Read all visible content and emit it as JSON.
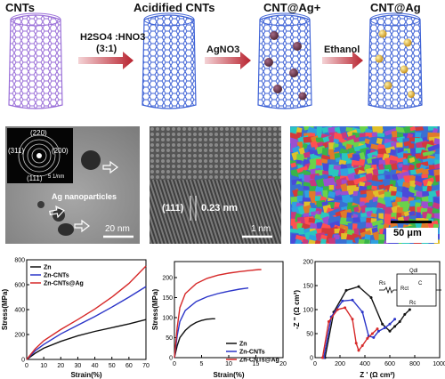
{
  "scheme": {
    "stages": [
      "CNTs",
      "Acidified CNTs",
      "CNT@Ag+",
      "CNT@Ag"
    ],
    "arrows": [
      {
        "label": "H2SO4 :HNO3",
        "sub": "(3:1)"
      },
      {
        "label": "AgNO3",
        "sub": ""
      },
      {
        "label": "Ethanol",
        "sub": ""
      }
    ],
    "colors": {
      "tube1": "#9a6fd8",
      "tube2": "#3f63d6",
      "ion": "#6b3a4e",
      "ag": "#e7b72b",
      "arrow": "#b8232f"
    }
  },
  "micrographs": {
    "tem": {
      "rings": [
        "(220)",
        "(311)",
        "(200)",
        "(111)"
      ],
      "scale_inset": "5 1/nm",
      "annotation": "Ag nanoparticles",
      "scale_bar": "20 nm"
    },
    "hrtem": {
      "plane": "(111)",
      "spacing": "0.23 nm",
      "scale_bar": "1 nm"
    },
    "ebsd": {
      "scale_bar": "50 μm"
    }
  },
  "chart_data": [
    {
      "type": "line",
      "xlabel": "Strain(%)",
      "ylabel": "Stress(MPa)",
      "xlim": [
        0,
        70
      ],
      "ylim": [
        0,
        800
      ],
      "xticks": [
        0,
        10,
        20,
        30,
        40,
        50,
        60,
        70
      ],
      "yticks": [
        0,
        200,
        400,
        600,
        800
      ],
      "legend": "top-left",
      "series": [
        {
          "name": "Zn",
          "color": "#111111",
          "x": [
            0,
            5,
            10,
            20,
            30,
            40,
            50,
            60,
            70
          ],
          "y": [
            0,
            50,
            90,
            145,
            190,
            225,
            255,
            285,
            320
          ]
        },
        {
          "name": "Zn-CNTs",
          "color": "#2b35c8",
          "x": [
            0,
            5,
            10,
            20,
            30,
            40,
            50,
            60,
            70
          ],
          "y": [
            0,
            70,
            120,
            205,
            275,
            345,
            420,
            500,
            585
          ]
        },
        {
          "name": "Zn-CNTs@Ag",
          "color": "#d62828",
          "x": [
            0,
            5,
            10,
            20,
            30,
            40,
            50,
            60,
            70
          ],
          "y": [
            0,
            85,
            150,
            240,
            320,
            405,
            500,
            610,
            750
          ]
        }
      ]
    },
    {
      "type": "line",
      "xlabel": "Strain(%)",
      "ylabel": "Stress(MPa)",
      "xlim": [
        0,
        20
      ],
      "ylim": [
        0,
        240
      ],
      "xticks": [
        0,
        5,
        10,
        15,
        20
      ],
      "yticks": [
        0,
        50,
        100,
        150,
        200
      ],
      "legend": "bottom-right",
      "series": [
        {
          "name": "Zn",
          "color": "#111111",
          "x": [
            0,
            0.5,
            1,
            2,
            3,
            4,
            5,
            6,
            7,
            7.5
          ],
          "y": [
            0,
            30,
            50,
            68,
            80,
            88,
            93,
            96,
            97,
            97
          ]
        },
        {
          "name": "Zn-CNTs",
          "color": "#2b35c8",
          "x": [
            0,
            0.5,
            1,
            2,
            4,
            6,
            8,
            10,
            12,
            13,
            13.6
          ],
          "y": [
            0,
            55,
            90,
            118,
            140,
            152,
            160,
            166,
            171,
            173,
            174
          ]
        },
        {
          "name": "Zn-CNTs@Ag",
          "color": "#d62828",
          "x": [
            0,
            0.5,
            1,
            2,
            4,
            6,
            8,
            10,
            12,
            14,
            15.5,
            16
          ],
          "y": [
            0,
            75,
            125,
            160,
            185,
            198,
            206,
            211,
            215,
            218,
            220,
            220
          ]
        }
      ]
    },
    {
      "type": "scatter",
      "xlabel": "Z ' (Ω cm²)",
      "ylabel": "-Z '' (Ω cm²)",
      "xlim": [
        0,
        1000
      ],
      "ylim": [
        0,
        200
      ],
      "xticks": [
        0,
        200,
        400,
        600,
        800,
        1000
      ],
      "yticks": [
        0,
        50,
        100,
        150,
        200
      ],
      "circuit": {
        "labels": [
          "Rs",
          "Qdl",
          "Rct",
          "C",
          "Rc"
        ]
      },
      "series": [
        {
          "name": "Zn",
          "color": "#111111",
          "x": [
            80,
            150,
            250,
            350,
            450,
            540,
            600,
            640,
            680,
            720,
            760
          ],
          "y": [
            0,
            95,
            140,
            148,
            125,
            70,
            55,
            65,
            75,
            90,
            100
          ]
        },
        {
          "name": "Zn-CNTs",
          "color": "#2b35c8",
          "x": [
            70,
            130,
            220,
            300,
            380,
            430,
            470,
            510,
            560,
            600,
            640
          ],
          "y": [
            0,
            85,
            118,
            120,
            95,
            45,
            42,
            55,
            62,
            70,
            80
          ]
        },
        {
          "name": "Zn-CNTs@Ag",
          "color": "#d62828",
          "x": [
            60,
            110,
            180,
            240,
            300,
            330,
            350,
            380,
            420,
            460,
            500
          ],
          "y": [
            0,
            75,
            100,
            104,
            80,
            30,
            15,
            25,
            40,
            50,
            60
          ]
        }
      ]
    }
  ]
}
